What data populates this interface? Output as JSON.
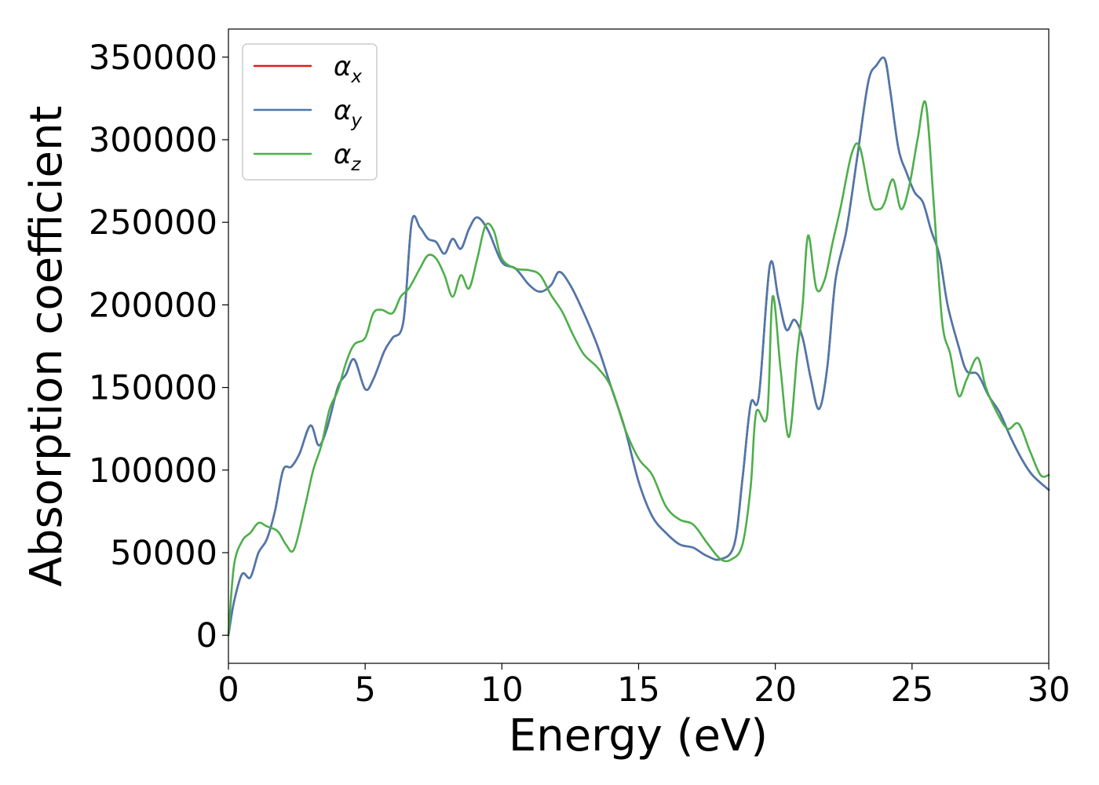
{
  "chart_data": {
    "type": "line",
    "xlabel": "Energy (eV)",
    "ylabel": "Absorption coefficient",
    "xlim": [
      0,
      30
    ],
    "ylim": [
      -17000,
      367000
    ],
    "x_ticks": [
      0,
      5,
      10,
      15,
      20,
      25,
      30
    ],
    "x_tick_labels": [
      "0",
      "5",
      "10",
      "15",
      "20",
      "25",
      "30"
    ],
    "y_ticks": [
      0,
      50000,
      100000,
      150000,
      200000,
      250000,
      300000,
      350000
    ],
    "y_tick_labels": [
      "0",
      "50000",
      "100000",
      "150000",
      "200000",
      "250000",
      "300000",
      "350000"
    ],
    "grid": false,
    "legend_position": "top-left",
    "series": [
      {
        "name": "α",
        "subscript": "x",
        "color": "#e41a1c",
        "x": [
          0,
          0.2,
          0.5,
          0.8,
          1.1,
          1.4,
          1.7,
          2.0,
          2.3,
          2.6,
          3.0,
          3.3,
          3.6,
          4.0,
          4.3,
          4.6,
          5.0,
          5.3,
          5.7,
          6.0,
          6.4,
          6.7,
          7.0,
          7.3,
          7.6,
          7.9,
          8.2,
          8.5,
          8.8,
          9.1,
          9.5,
          10.0,
          10.5,
          11.0,
          11.4,
          11.8,
          12.1,
          12.5,
          13.0,
          13.5,
          14.0,
          14.5,
          15.0,
          15.5,
          16.0,
          16.5,
          17.0,
          17.5,
          18.0,
          18.5,
          18.8,
          19.1,
          19.4,
          19.8,
          20.1,
          20.4,
          20.7,
          21.0,
          21.3,
          21.6,
          21.9,
          22.2,
          22.6,
          23.0,
          23.4,
          23.7,
          24.0,
          24.2,
          24.5,
          24.8,
          25.1,
          25.4,
          25.7,
          26.0,
          26.3,
          26.7,
          27.0,
          27.4,
          27.8,
          28.2,
          28.6,
          29.0,
          29.4,
          30.0
        ],
        "values": [
          0,
          20000,
          37000,
          35000,
          50000,
          58000,
          75000,
          100000,
          102000,
          110000,
          127000,
          115000,
          125000,
          150000,
          158000,
          167000,
          149000,
          155000,
          172000,
          180000,
          190000,
          250000,
          247000,
          240000,
          238000,
          231000,
          240000,
          234000,
          246000,
          253000,
          245000,
          226000,
          222000,
          212000,
          208000,
          212000,
          220000,
          212000,
          195000,
          175000,
          150000,
          125000,
          93000,
          72000,
          62000,
          55000,
          53000,
          48000,
          46000,
          55000,
          95000,
          140000,
          145000,
          224000,
          205000,
          185000,
          191000,
          180000,
          155000,
          137000,
          162000,
          215000,
          245000,
          290000,
          335000,
          345000,
          349000,
          330000,
          295000,
          280000,
          268000,
          262000,
          245000,
          230000,
          200000,
          175000,
          160000,
          158000,
          145000,
          135000,
          120000,
          107000,
          97000,
          88000
        ]
      },
      {
        "name": "α",
        "subscript": "y",
        "color": "#4a79ad",
        "x": [
          0,
          0.2,
          0.5,
          0.8,
          1.1,
          1.4,
          1.7,
          2.0,
          2.3,
          2.6,
          3.0,
          3.3,
          3.6,
          4.0,
          4.3,
          4.6,
          5.0,
          5.3,
          5.7,
          6.0,
          6.4,
          6.7,
          7.0,
          7.3,
          7.6,
          7.9,
          8.2,
          8.5,
          8.8,
          9.1,
          9.5,
          10.0,
          10.5,
          11.0,
          11.4,
          11.8,
          12.1,
          12.5,
          13.0,
          13.5,
          14.0,
          14.5,
          15.0,
          15.5,
          16.0,
          16.5,
          17.0,
          17.5,
          18.0,
          18.5,
          18.8,
          19.1,
          19.4,
          19.8,
          20.1,
          20.4,
          20.7,
          21.0,
          21.3,
          21.6,
          21.9,
          22.2,
          22.6,
          23.0,
          23.4,
          23.7,
          24.0,
          24.2,
          24.5,
          24.8,
          25.1,
          25.4,
          25.7,
          26.0,
          26.3,
          26.7,
          27.0,
          27.4,
          27.8,
          28.2,
          28.6,
          29.0,
          29.4,
          30.0
        ],
        "values": [
          0,
          20000,
          37000,
          35000,
          50000,
          58000,
          75000,
          100000,
          102000,
          110000,
          127000,
          115000,
          125000,
          150000,
          158000,
          167000,
          149000,
          155000,
          172000,
          180000,
          190000,
          250000,
          247000,
          240000,
          238000,
          231000,
          240000,
          234000,
          246000,
          253000,
          245000,
          226000,
          222000,
          212000,
          208000,
          212000,
          220000,
          212000,
          195000,
          175000,
          150000,
          125000,
          93000,
          72000,
          62000,
          55000,
          53000,
          48000,
          46000,
          55000,
          95000,
          140000,
          145000,
          224000,
          205000,
          185000,
          191000,
          180000,
          155000,
          137000,
          162000,
          215000,
          245000,
          290000,
          335000,
          345000,
          349000,
          330000,
          295000,
          280000,
          268000,
          262000,
          245000,
          230000,
          200000,
          175000,
          160000,
          158000,
          145000,
          135000,
          120000,
          107000,
          97000,
          88000
        ]
      },
      {
        "name": "α",
        "subscript": "z",
        "color": "#4daf4a",
        "x": [
          0,
          0.2,
          0.5,
          0.8,
          1.1,
          1.4,
          1.8,
          2.1,
          2.4,
          2.8,
          3.1,
          3.4,
          3.7,
          4.0,
          4.3,
          4.6,
          5.0,
          5.3,
          5.6,
          6.0,
          6.3,
          6.6,
          7.0,
          7.3,
          7.6,
          7.9,
          8.2,
          8.5,
          8.8,
          9.1,
          9.4,
          9.7,
          10.0,
          10.5,
          11.0,
          11.4,
          11.8,
          12.2,
          12.6,
          13.0,
          13.5,
          14.0,
          14.5,
          15.0,
          15.5,
          16.0,
          16.5,
          17.0,
          17.5,
          18.0,
          18.4,
          18.8,
          19.1,
          19.3,
          19.7,
          19.9,
          20.2,
          20.5,
          20.8,
          21.0,
          21.2,
          21.5,
          21.8,
          22.1,
          22.4,
          22.8,
          23.1,
          23.5,
          23.8,
          24.0,
          24.3,
          24.6,
          24.9,
          25.2,
          25.5,
          25.8,
          26.1,
          26.4,
          26.7,
          27.0,
          27.4,
          27.7,
          28.1,
          28.5,
          28.9,
          29.3,
          29.7,
          30.0
        ],
        "values": [
          0,
          42000,
          57000,
          62000,
          68000,
          66000,
          63000,
          55000,
          52000,
          78000,
          100000,
          115000,
          137000,
          148000,
          165000,
          176000,
          180000,
          195000,
          197000,
          195000,
          205000,
          210000,
          222000,
          230000,
          228000,
          218000,
          205000,
          218000,
          210000,
          228000,
          248000,
          245000,
          228000,
          222000,
          221000,
          218000,
          206000,
          196000,
          182000,
          170000,
          162000,
          150000,
          125000,
          107000,
          97000,
          78000,
          70000,
          67000,
          56000,
          46000,
          46000,
          55000,
          90000,
          135000,
          133000,
          205000,
          160000,
          120000,
          170000,
          200000,
          242000,
          210000,
          215000,
          238000,
          260000,
          292000,
          295000,
          262000,
          258000,
          262000,
          276000,
          258000,
          272000,
          300000,
          322000,
          260000,
          190000,
          170000,
          145000,
          155000,
          168000,
          150000,
          135000,
          125000,
          128000,
          112000,
          97000,
          97000
        ]
      }
    ]
  }
}
